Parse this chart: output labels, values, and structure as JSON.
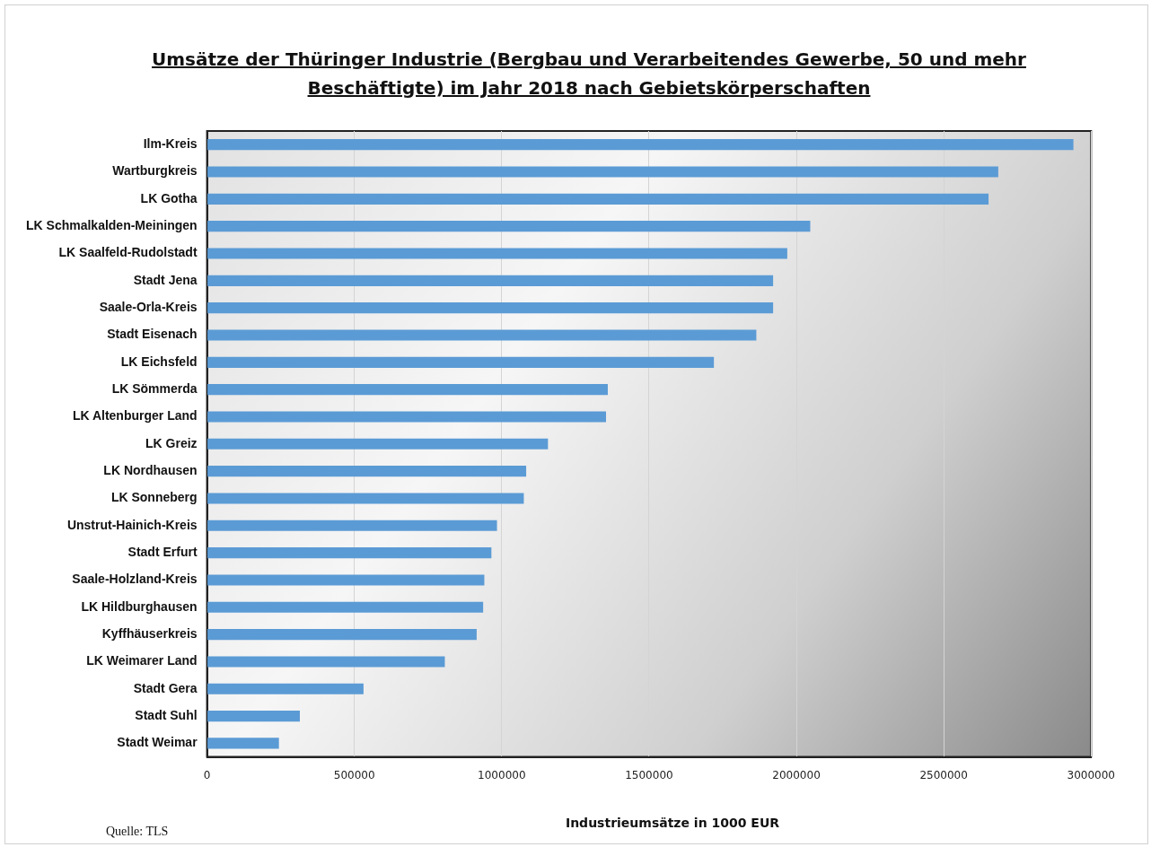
{
  "chart_data": {
    "type": "bar",
    "orientation": "horizontal",
    "title": "Umsätze der Thüringer Industrie (Bergbau und Verarbeitendes Gewerbe, 50 und mehr Beschäftigte) im Jahr 2018 nach Gebietskörperschaften",
    "xlabel": "Industrieumsätze in 1000 EUR",
    "categories": [
      "Ilm-Kreis",
      "Wartburgkreis",
      "LK Gotha",
      "LK Schmalkalden-Meiningen",
      "LK Saalfeld-Rudolstadt",
      "Stadt Jena",
      "Saale-Orla-Kreis",
      "Stadt Eisenach",
      "LK Eichsfeld",
      "LK Sömmerda",
      "LK Altenburger Land",
      "LK Greiz",
      "LK Nordhausen",
      "LK Sonneberg",
      "Unstrut-Hainich-Kreis",
      "Stadt Erfurt",
      "Saale-Holzland-Kreis",
      "LK Hildburghausen",
      "Kyffhäuserkreis",
      "LK Weimarer Land",
      "Stadt Gera",
      "Stadt Suhl",
      "Stadt Weimar"
    ],
    "values": [
      2940000,
      2685000,
      2652000,
      2047000,
      1969000,
      1921000,
      1921000,
      1864000,
      1720000,
      1360000,
      1354000,
      1157000,
      1083000,
      1075000,
      984000,
      965000,
      941000,
      937000,
      915000,
      807000,
      531000,
      315000,
      244000
    ],
    "color": "#5b9bd5",
    "xlim": [
      0,
      3000000
    ],
    "xticks": [
      0,
      500000,
      1000000,
      1500000,
      2000000,
      2500000,
      3000000
    ],
    "grid": "x",
    "legend": false,
    "annotations": [
      "Quelle: TLS"
    ]
  }
}
